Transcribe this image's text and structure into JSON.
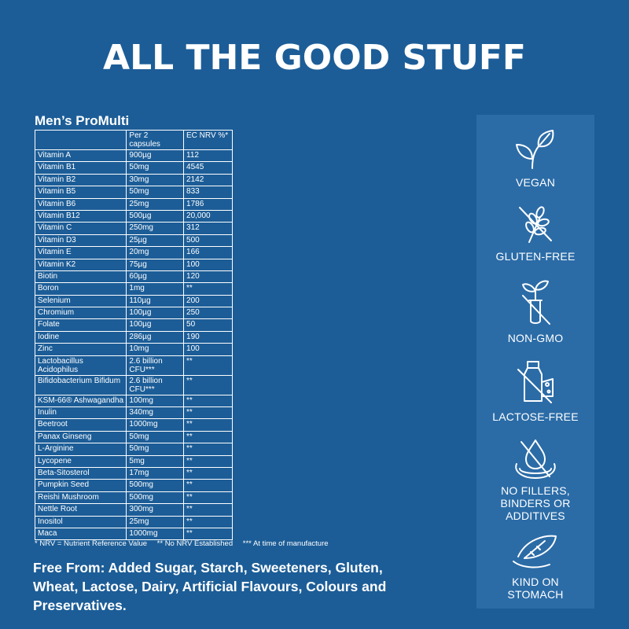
{
  "headline": "ALL THE GOOD STUFF",
  "product_title": "Men’s ProMulti",
  "table": {
    "headers": [
      "",
      "Per 2 capsules",
      "EC NRV %*"
    ],
    "rows": [
      [
        "Vitamin A",
        "900µg",
        "112"
      ],
      [
        "Vitamin B1",
        "50mg",
        "4545"
      ],
      [
        "Vitamin B2",
        "30mg",
        "2142"
      ],
      [
        "Vitamin B5",
        "50mg",
        "833"
      ],
      [
        "Vitamin B6",
        "25mg",
        "1786"
      ],
      [
        "Vitamin B12",
        "500µg",
        "20,000"
      ],
      [
        "Vitamin C",
        "250mg",
        "312"
      ],
      [
        "Vitamin D3",
        "25µg",
        "500"
      ],
      [
        "Vitamin E",
        "20mg",
        "166"
      ],
      [
        "Vitamin K2",
        "75µg",
        "100"
      ],
      [
        "Biotin",
        "60µg",
        "120"
      ],
      [
        "Boron",
        "1mg",
        "**"
      ],
      [
        "Selenium",
        "110µg",
        "200"
      ],
      [
        "Chromium",
        "100µg",
        "250"
      ],
      [
        "Folate",
        "100µg",
        "50"
      ],
      [
        "Iodine",
        "286µg",
        "190"
      ],
      [
        "Zinc",
        "10mg",
        "100"
      ],
      [
        "Lactobacillus Acidophilus",
        "2.6 billion CFU***",
        "**"
      ],
      [
        "Bifidobacterium Bifidum",
        "2.6 billion CFU***",
        "**"
      ],
      [
        "KSM-66® Ashwagandha",
        "100mg",
        "**"
      ],
      [
        "Inulin",
        "340mg",
        "**"
      ],
      [
        "Beetroot",
        "1000mg",
        "**"
      ],
      [
        "Panax Ginseng",
        "50mg",
        "**"
      ],
      [
        "L-Arginine",
        "50mg",
        "**"
      ],
      [
        "Lycopene",
        "5mg",
        "**"
      ],
      [
        "Beta-Sitosterol",
        "17mg",
        "**"
      ],
      [
        "Pumpkin Seed",
        "500mg",
        "**"
      ],
      [
        "Reishi Mushroom",
        "500mg",
        "**"
      ],
      [
        "Nettle Root",
        "300mg",
        "**"
      ],
      [
        "Inositol",
        "25mg",
        "**"
      ],
      [
        "Maca",
        "1000mg",
        "**"
      ]
    ]
  },
  "footnotes": [
    "* NRV = Nutrient Reference Value",
    "** No NRV Established",
    "*** At time of manufacture"
  ],
  "free_from": "Free From: Added Sugar, Starch, Sweeteners, Gluten, Wheat, Lactose, Dairy, Artificial Flavours, Colours and Preservatives.",
  "badges": [
    {
      "icon": "leaf-icon",
      "label": "VEGAN"
    },
    {
      "icon": "wheat-crossed-icon",
      "label": "GLUTEN-FREE"
    },
    {
      "icon": "test-tube-plant-crossed-icon",
      "label": "NON-GMO"
    },
    {
      "icon": "milk-bottle-crossed-icon",
      "label": "LACTOSE-FREE"
    },
    {
      "icon": "drop-crossed-icon",
      "label": "NO FILLERS, BINDERS OR ADDITIVES"
    },
    {
      "icon": "feather-hand-icon",
      "label": "KIND ON STOMACH"
    }
  ],
  "colors": {
    "background": "#1c5d97",
    "badge_panel": "#2b6ca7",
    "text": "#ffffff"
  }
}
